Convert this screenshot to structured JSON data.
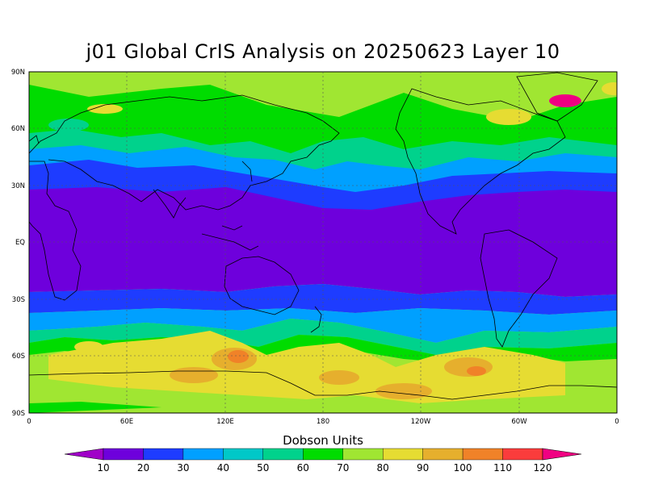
{
  "title": "j01 Global CrIS Analysis on 20250623 Layer 10",
  "colorbar": {
    "title": "Dobson Units",
    "labels": [
      "10",
      "20",
      "30",
      "40",
      "50",
      "60",
      "70",
      "80",
      "90",
      "100",
      "110",
      "120"
    ],
    "colors": [
      "#a000c8",
      "#6e00dc",
      "#1e3cff",
      "#00a0ff",
      "#00c8c8",
      "#00d28c",
      "#00dc00",
      "#a0e632",
      "#e6dc32",
      "#e6af2d",
      "#f08228",
      "#fa3c3c",
      "#f00082"
    ]
  },
  "map": {
    "lat_labels": [
      "90N",
      "60N",
      "30N",
      "EQ",
      "30S",
      "60S",
      "90S"
    ],
    "lon_labels": [
      "0",
      "60E",
      "120E",
      "180",
      "120W",
      "60W",
      "0"
    ]
  }
}
